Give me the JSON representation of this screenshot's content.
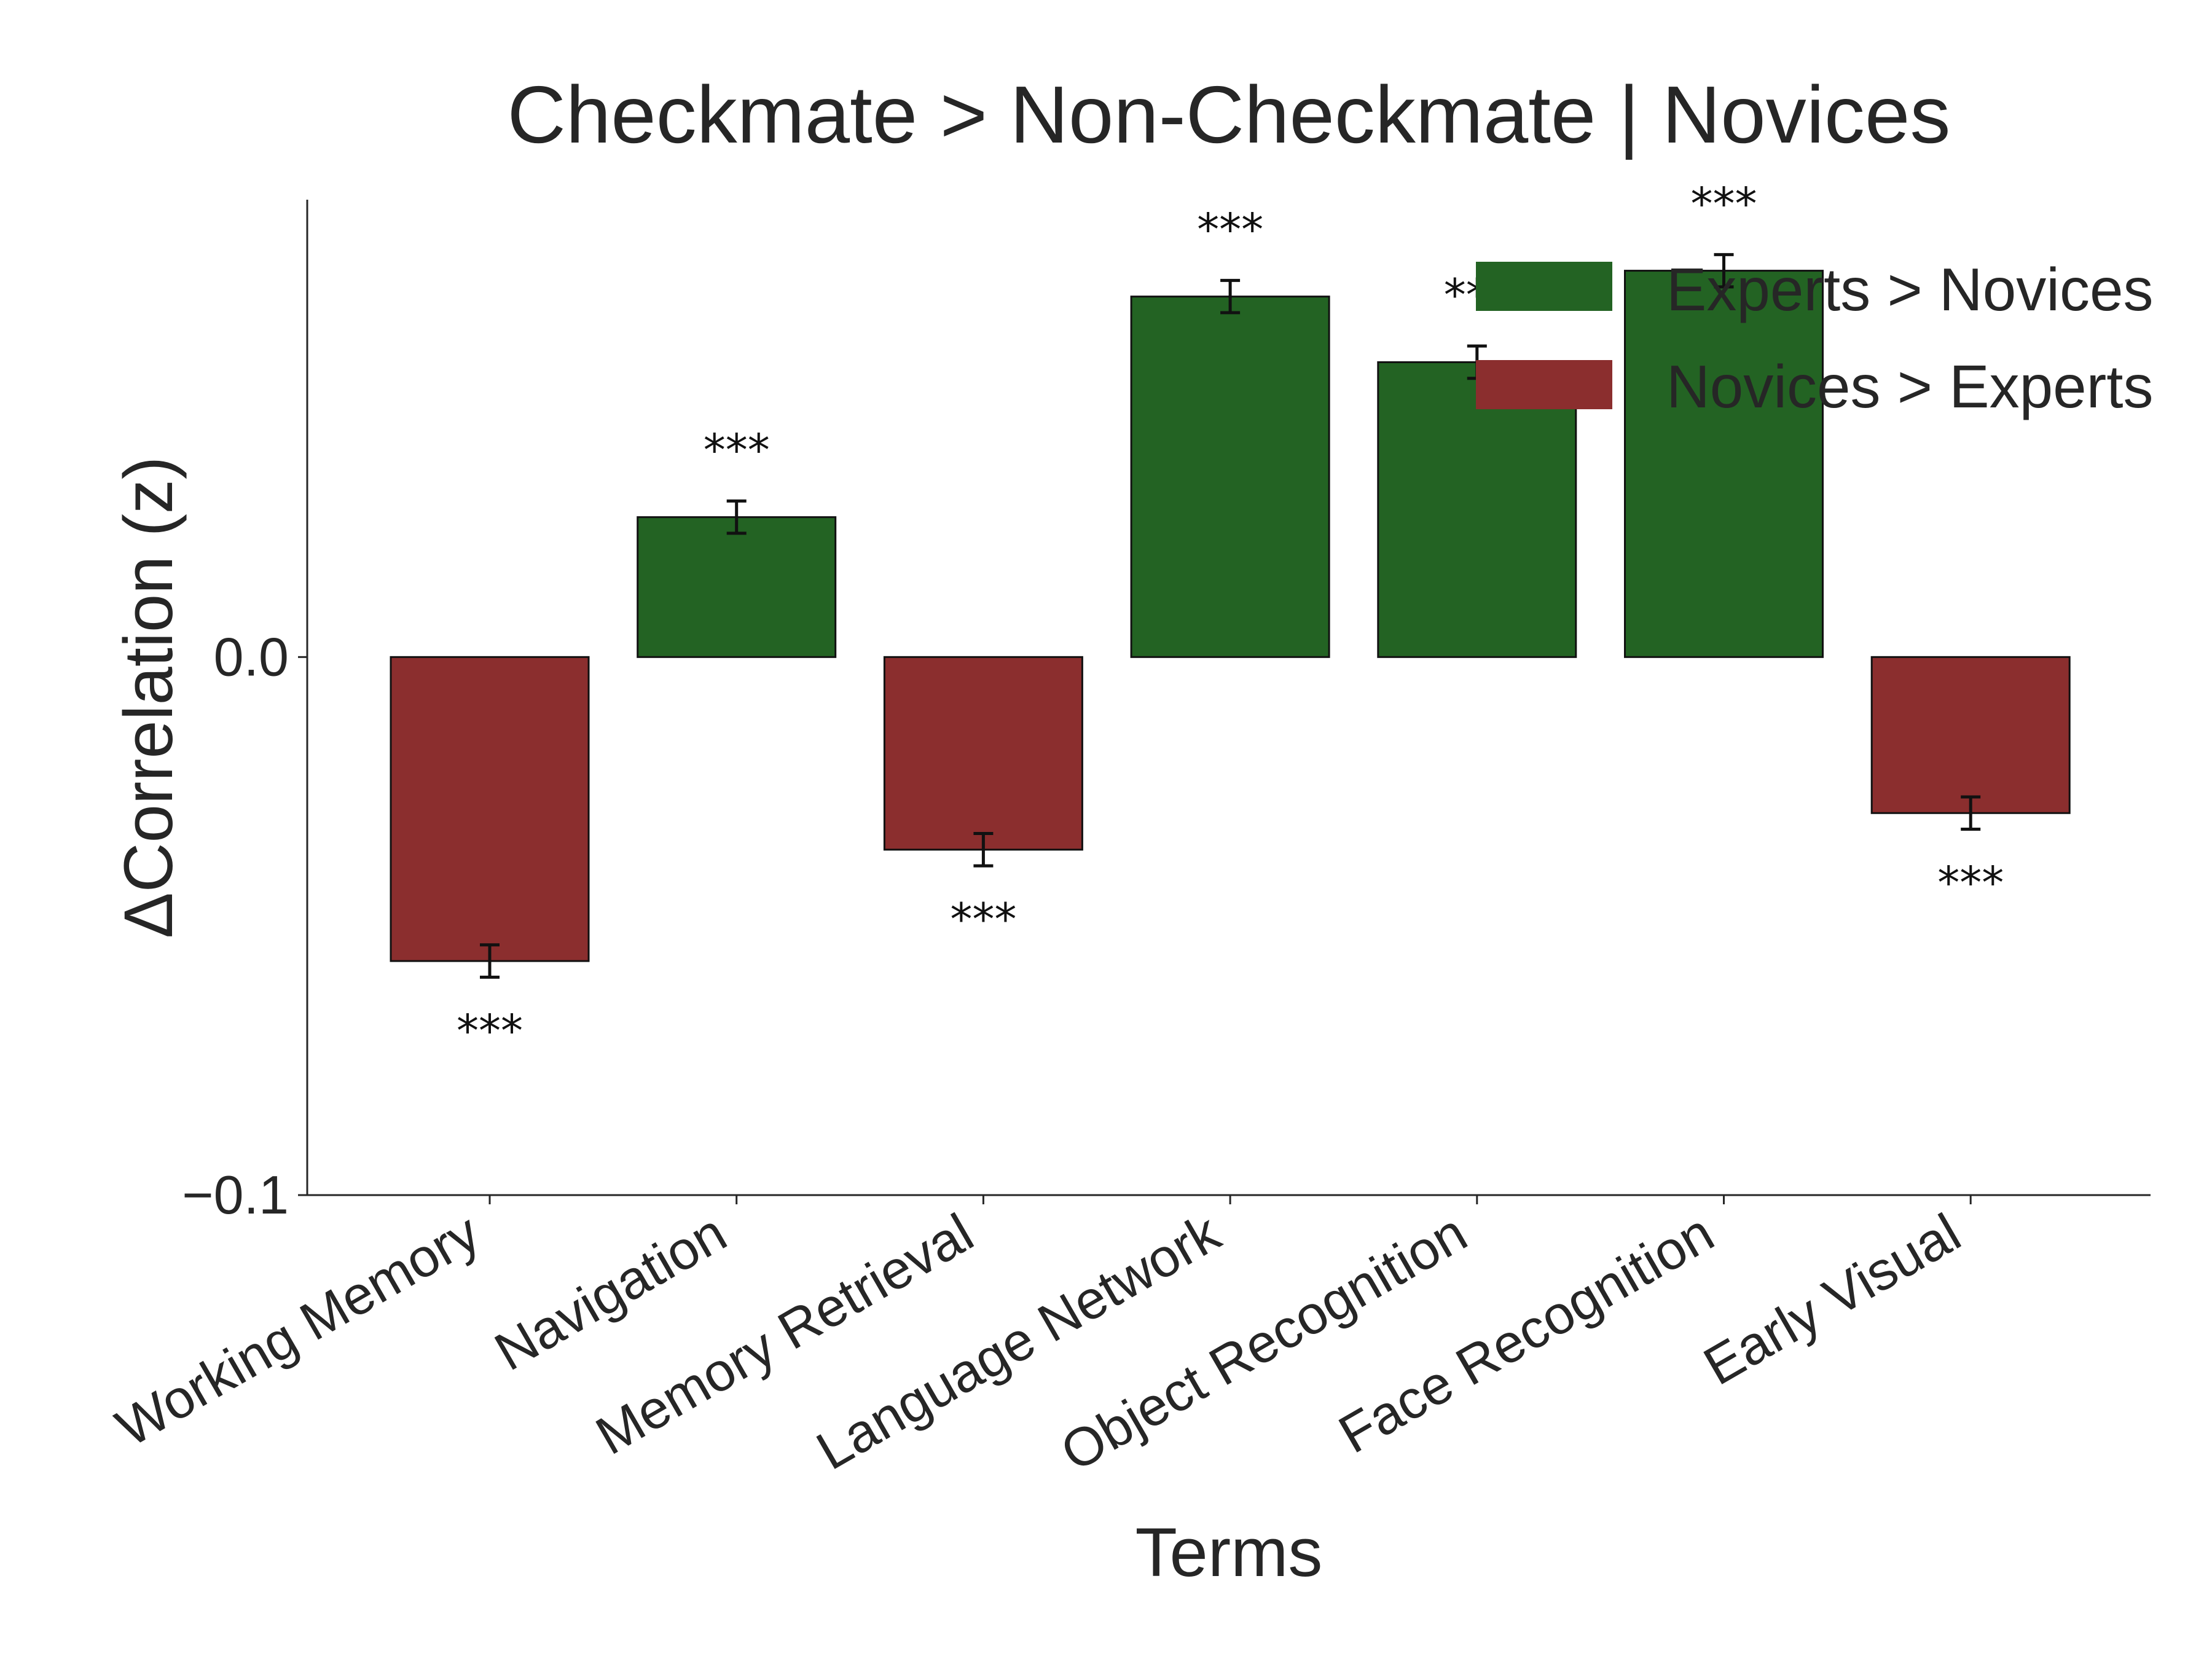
{
  "chart_data": {
    "type": "bar",
    "title": "Checkmate > Non-Checkmate | Novices",
    "xlabel": "Terms",
    "ylabel": "ΔCorrelation (z)",
    "ylim": [
      -0.1,
      0.085
    ],
    "yticks": [
      {
        "value": 0.0,
        "label": "0.0"
      },
      {
        "value": -0.1,
        "label": "−0.1"
      }
    ],
    "categories": [
      "Working Memory",
      "Navigation",
      "Memory Retrieval",
      "Language Network",
      "Object Recognition",
      "Face Recognition",
      "Early Visual"
    ],
    "values": [
      -0.0565,
      0.026,
      -0.0358,
      0.067,
      0.0548,
      0.0718,
      -0.029
    ],
    "errors": [
      0.003,
      0.003,
      0.003,
      0.003,
      0.003,
      0.003,
      0.003
    ],
    "significance": [
      "***",
      "***",
      "***",
      "***",
      "***",
      "***",
      "***"
    ],
    "colors": [
      "#8b2e2e",
      "#236323",
      "#8b2e2e",
      "#236323",
      "#236323",
      "#236323",
      "#8b2e2e"
    ],
    "grid": false,
    "legend": {
      "position": "top-right",
      "entries": [
        {
          "label": "Experts > Novices",
          "color": "#236323"
        },
        {
          "label": "Novices > Experts",
          "color": "#8b2e2e"
        }
      ]
    }
  }
}
